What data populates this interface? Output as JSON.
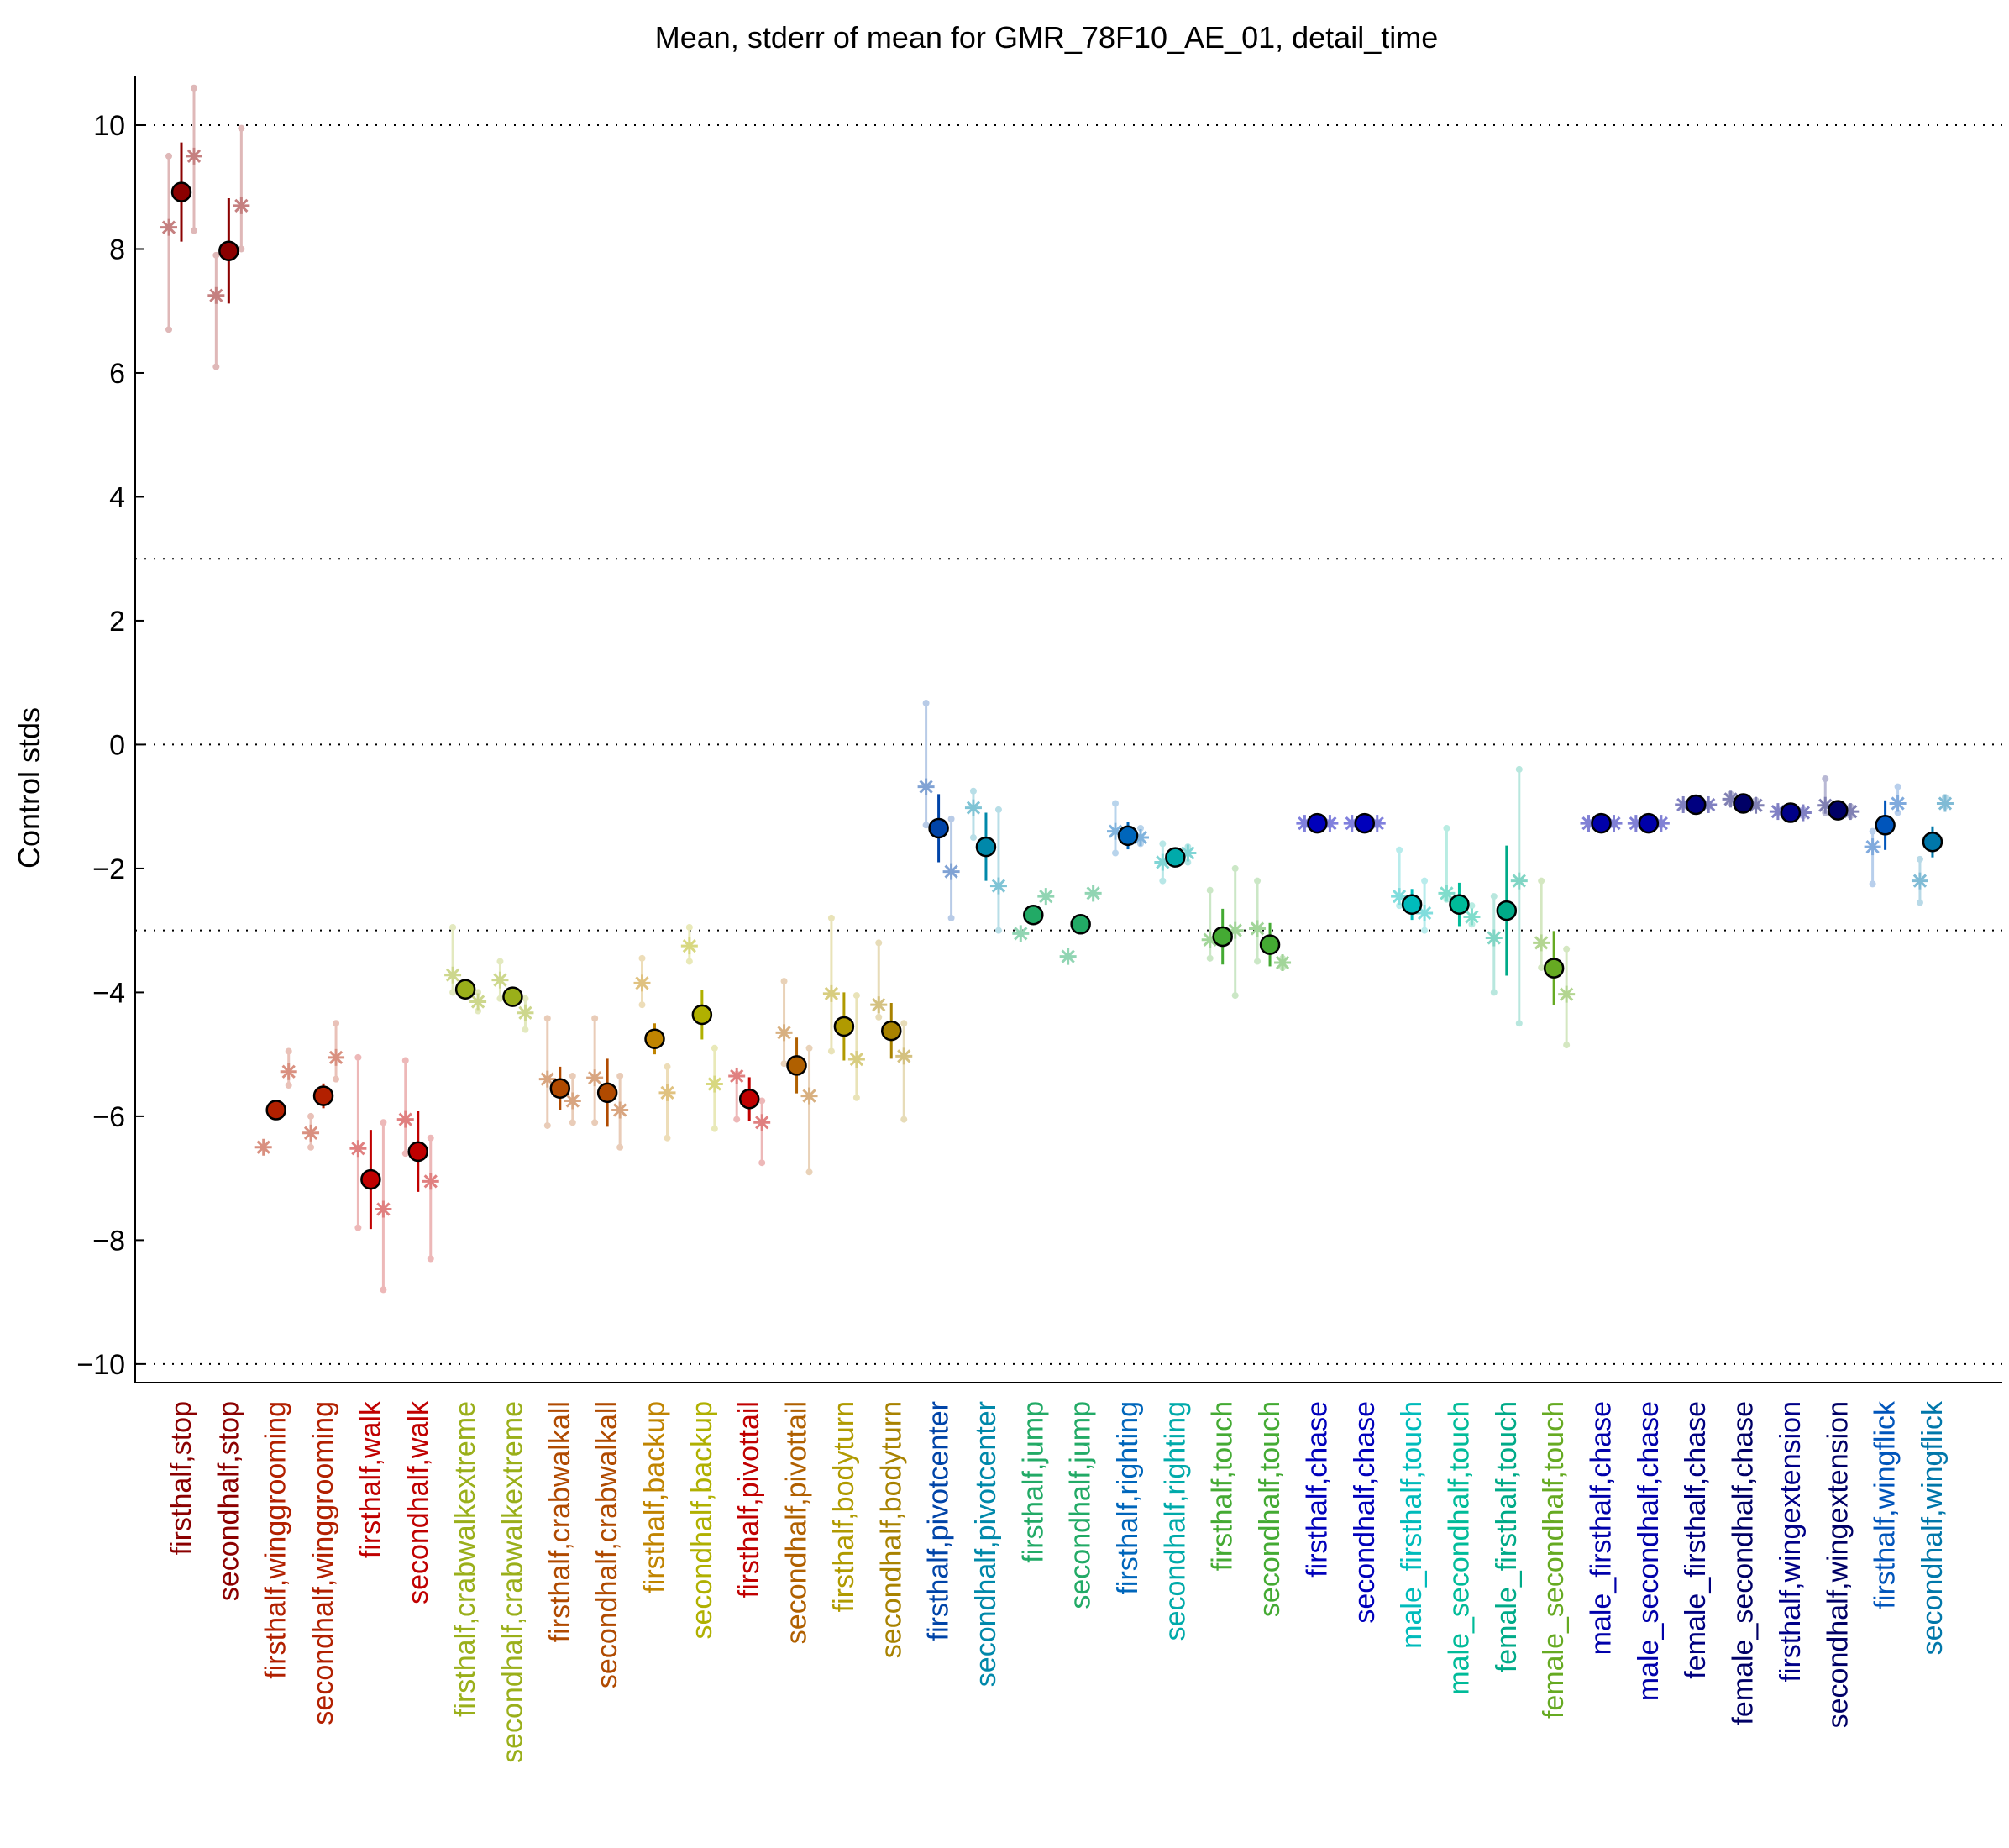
{
  "chart_data": {
    "type": "scatter",
    "title": "Mean, stderr of mean for GMR_78F10_AE_01, detail_time",
    "ylabel": "Control stds",
    "xlabel": "",
    "ylim": [
      -10.3,
      10.8
    ],
    "yticks": [
      -10,
      -8,
      -6,
      -4,
      -2,
      0,
      2,
      4,
      6,
      8,
      10
    ],
    "reference_lines": [
      10,
      3,
      0,
      -3,
      -10
    ],
    "grid": false,
    "categories": [
      "firsthalf,stop",
      "secondhalf,stop",
      "firsthalf,winggrooming",
      "secondhalf,winggrooming",
      "firsthalf,walk",
      "secondhalf,walk",
      "firsthalf,crabwalkextreme",
      "secondhalf,crabwalkextreme",
      "firsthalf,crabwalkall",
      "secondhalf,crabwalkall",
      "firsthalf,backup",
      "secondhalf,backup",
      "firsthalf,pivottail",
      "secondhalf,pivottail",
      "firsthalf,bodyturn",
      "secondhalf,bodyturn",
      "firsthalf,pivotcenter",
      "secondhalf,pivotcenter",
      "firsthalf,jump",
      "secondhalf,jump",
      "firsthalf,righting",
      "secondhalf,righting",
      "firsthalf,touch",
      "secondhalf,touch",
      "firsthalf,chase",
      "secondhalf,chase",
      "male_firsthalf,touch",
      "male_secondhalf,touch",
      "female_firsthalf,touch",
      "female_secondhalf,touch",
      "male_firsthalf,chase",
      "male_secondhalf,chase",
      "female_firsthalf,chase",
      "female_secondhalf,chase",
      "firsthalf,wingextension",
      "secondhalf,wingextension",
      "firsthalf,wingflick",
      "secondhalf,wingflick"
    ],
    "colors": [
      "#8b0000",
      "#8b0000",
      "#b22000",
      "#b22000",
      "#c00000",
      "#c00000",
      "#9aaf1a",
      "#9aaf1a",
      "#b04a00",
      "#b04a00",
      "#c08400",
      "#b0b000",
      "#c00000",
      "#b06000",
      "#b09a00",
      "#a88200",
      "#0044a8",
      "#0088aa",
      "#22aa66",
      "#22aa66",
      "#0066bb",
      "#00aaaa",
      "#44aa33",
      "#44aa33",
      "#0000bb",
      "#0000bb",
      "#00bbbb",
      "#00bb99",
      "#00aa88",
      "#66aa22",
      "#0000aa",
      "#0000aa",
      "#000080",
      "#000066",
      "#000088",
      "#000066",
      "#0055bb",
      "#0077aa"
    ],
    "mean": [
      8.92,
      7.97,
      -5.9,
      -5.67,
      -7.02,
      -6.57,
      -3.95,
      -4.07,
      -5.55,
      -5.62,
      -4.75,
      -4.36,
      -5.72,
      -5.18,
      -4.55,
      -4.62,
      -1.35,
      -1.65,
      -2.75,
      -2.9,
      -1.47,
      -1.82,
      -3.1,
      -3.23,
      -1.27,
      -1.27,
      -2.58,
      -2.58,
      -2.68,
      -3.61,
      -1.27,
      -1.27,
      -0.97,
      -0.95,
      -1.1,
      -1.06,
      -1.3,
      -1.57
    ],
    "stderr": [
      0.8,
      0.85,
      0.12,
      0.2,
      0.8,
      0.65,
      0.12,
      0.12,
      0.35,
      0.55,
      0.25,
      0.4,
      0.35,
      0.45,
      0.55,
      0.45,
      0.55,
      0.55,
      0.1,
      0.1,
      0.22,
      0.12,
      0.45,
      0.35,
      0.06,
      0.06,
      0.25,
      0.35,
      1.05,
      0.6,
      0.06,
      0.06,
      0.08,
      0.08,
      0.08,
      0.1,
      0.4,
      0.25
    ],
    "half_values": [
      [
        8.35,
        9.5
      ],
      [
        7.25,
        8.7
      ],
      [
        -6.5,
        -5.28
      ],
      [
        -6.27,
        -5.05
      ],
      [
        -6.52,
        -7.5
      ],
      [
        -6.05,
        -7.05
      ],
      [
        -3.72,
        -4.15
      ],
      [
        -3.8,
        -4.33
      ],
      [
        -5.4,
        -5.75
      ],
      [
        -5.38,
        -5.9
      ],
      [
        -3.85,
        -5.62
      ],
      [
        -3.25,
        -5.48
      ],
      [
        -5.35,
        -6.1
      ],
      [
        -4.65,
        -5.67
      ],
      [
        -4.02,
        -5.08
      ],
      [
        -4.2,
        -5.03
      ],
      [
        -0.68,
        -2.05
      ],
      [
        -1.02,
        -2.28
      ],
      [
        -3.05,
        -2.45
      ],
      [
        -3.42,
        -2.4
      ],
      [
        -1.4,
        -1.5
      ],
      [
        -1.9,
        -1.75
      ],
      [
        -3.15,
        -3.0
      ],
      [
        -2.97,
        -3.52
      ],
      [
        -1.27,
        -1.27
      ],
      [
        -1.27,
        -1.27
      ],
      [
        -2.45,
        -2.72
      ],
      [
        -2.4,
        -2.78
      ],
      [
        -3.12,
        -2.2
      ],
      [
        -3.2,
        -4.03
      ],
      [
        -1.27,
        -1.27
      ],
      [
        -1.27,
        -1.27
      ],
      [
        -0.97,
        -0.97
      ],
      [
        -0.88,
        -0.98
      ],
      [
        -1.08,
        -1.1
      ],
      [
        -0.98,
        -1.08
      ],
      [
        -1.65,
        -0.95
      ],
      [
        -2.2,
        -0.95
      ]
    ],
    "half_ranges": [
      [
        [
          6.7,
          9.5
        ],
        [
          8.3,
          10.6
        ]
      ],
      [
        [
          6.1,
          7.9
        ],
        [
          8.0,
          9.95
        ]
      ],
      [
        [
          -6.5,
          -6.5
        ],
        [
          -5.5,
          -4.95
        ]
      ],
      [
        [
          -6.5,
          -6.0
        ],
        [
          -5.4,
          -4.5
        ]
      ],
      [
        [
          -7.8,
          -5.05
        ],
        [
          -8.8,
          -6.1
        ]
      ],
      [
        [
          -6.6,
          -5.1
        ],
        [
          -8.3,
          -6.35
        ]
      ],
      [
        [
          -4.0,
          -2.95
        ],
        [
          -4.3,
          -4.0
        ]
      ],
      [
        [
          -4.1,
          -3.5
        ],
        [
          -4.6,
          -4.1
        ]
      ],
      [
        [
          -6.15,
          -4.42
        ],
        [
          -6.1,
          -5.35
        ]
      ],
      [
        [
          -6.1,
          -4.42
        ],
        [
          -6.5,
          -5.35
        ]
      ],
      [
        [
          -4.2,
          -3.45
        ],
        [
          -6.35,
          -5.2
        ]
      ],
      [
        [
          -3.5,
          -2.95
        ],
        [
          -6.2,
          -4.9
        ]
      ],
      [
        [
          -6.05,
          -5.32
        ],
        [
          -6.75,
          -5.75
        ]
      ],
      [
        [
          -5.15,
          -3.82
        ],
        [
          -6.9,
          -4.9
        ]
      ],
      [
        [
          -4.95,
          -2.8
        ],
        [
          -5.7,
          -4.05
        ]
      ],
      [
        [
          -4.4,
          -3.2
        ],
        [
          -6.05,
          -4.5
        ]
      ],
      [
        [
          -1.3,
          0.67
        ],
        [
          -2.8,
          -1.2
        ]
      ],
      [
        [
          -1.5,
          -0.75
        ],
        [
          -3.0,
          -1.05
        ]
      ],
      [
        [
          -3.05,
          -3.05
        ],
        [
          -2.45,
          -2.45
        ]
      ],
      [
        [
          -3.42,
          -3.42
        ],
        [
          -2.4,
          -2.4
        ]
      ],
      [
        [
          -1.75,
          -0.95
        ],
        [
          -1.6,
          -1.35
        ]
      ],
      [
        [
          -2.2,
          -1.6
        ],
        [
          -1.9,
          -1.65
        ]
      ],
      [
        [
          -3.45,
          -2.35
        ],
        [
          -4.05,
          -2.0
        ]
      ],
      [
        [
          -3.5,
          -2.2
        ],
        [
          -3.6,
          -3.45
        ]
      ],
      [
        [
          -1.3,
          -1.25
        ],
        [
          -1.3,
          -1.25
        ]
      ],
      [
        [
          -1.3,
          -1.25
        ],
        [
          -1.3,
          -1.25
        ]
      ],
      [
        [
          -2.6,
          -1.7
        ],
        [
          -3.0,
          -2.2
        ]
      ],
      [
        [
          -2.5,
          -1.35
        ],
        [
          -2.9,
          -2.6
        ]
      ],
      [
        [
          -4.0,
          -2.45
        ],
        [
          -4.5,
          -0.4
        ]
      ],
      [
        [
          -3.6,
          -2.2
        ],
        [
          -4.85,
          -3.3
        ]
      ],
      [
        [
          -1.3,
          -1.25
        ],
        [
          -1.3,
          -1.25
        ]
      ],
      [
        [
          -1.3,
          -1.25
        ],
        [
          -1.3,
          -1.25
        ]
      ],
      [
        [
          -1.0,
          -0.95
        ],
        [
          -1.0,
          -0.95
        ]
      ],
      [
        [
          -0.95,
          -0.8
        ],
        [
          -1.0,
          -0.9
        ]
      ],
      [
        [
          -1.1,
          -1.05
        ],
        [
          -1.15,
          -1.05
        ]
      ],
      [
        [
          -1.1,
          -0.55
        ],
        [
          -1.15,
          -1.0
        ]
      ],
      [
        [
          -2.25,
          -1.4
        ],
        [
          -1.1,
          -0.68
        ]
      ],
      [
        [
          -2.55,
          -1.85
        ],
        [
          -1.0,
          -0.85
        ]
      ]
    ]
  }
}
